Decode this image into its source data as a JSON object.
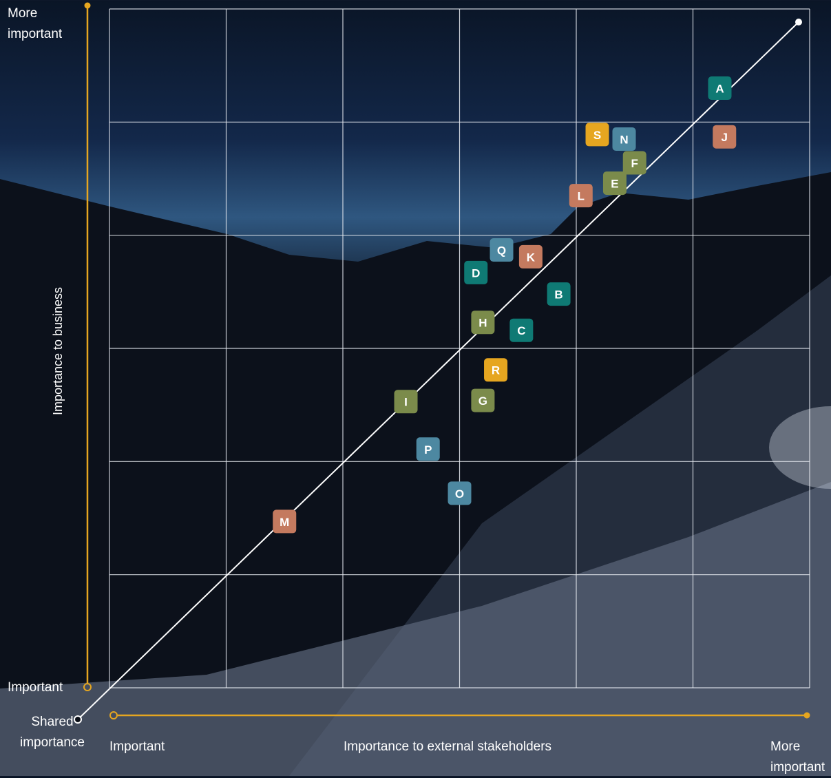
{
  "chart_data": {
    "type": "scatter",
    "labels": [
      "A",
      "B",
      "C",
      "D",
      "E",
      "F",
      "G",
      "H",
      "I",
      "J",
      "K",
      "L",
      "M",
      "N",
      "O",
      "P",
      "Q",
      "R",
      "S"
    ],
    "x": [
      5.23,
      3.85,
      3.53,
      3.14,
      4.33,
      4.5,
      3.2,
      3.2,
      2.54,
      5.27,
      3.61,
      4.04,
      1.5,
      4.41,
      3.0,
      2.73,
      3.36,
      3.31,
      4.18
    ],
    "y": [
      5.3,
      3.48,
      3.16,
      3.67,
      4.46,
      4.64,
      2.54,
      3.23,
      2.53,
      4.87,
      3.81,
      4.35,
      1.47,
      4.85,
      1.72,
      2.11,
      3.87,
      2.81,
      4.89
    ],
    "colors": [
      "#0f7a74",
      "#0f7a74",
      "#0f7a74",
      "#0f7a74",
      "#7b8b4b",
      "#7b8b4b",
      "#7b8b4b",
      "#7b8b4b",
      "#7b8b4b",
      "#c47a5f",
      "#c47a5f",
      "#c47a5f",
      "#c47a5f",
      "#4d88a1",
      "#4d88a1",
      "#4d88a1",
      "#4d88a1",
      "#e6a620",
      "#e6a620"
    ],
    "xlim": [
      0,
      6
    ],
    "ylim": [
      0,
      6
    ],
    "grid": true,
    "y_axis": {
      "label": "Importance to business",
      "low": "Important",
      "high": "More important"
    },
    "x_axis": {
      "label": "Importance to external stakeholders",
      "low": "Important",
      "high": "More important"
    },
    "diagonal_label": "Shared importance"
  }
}
